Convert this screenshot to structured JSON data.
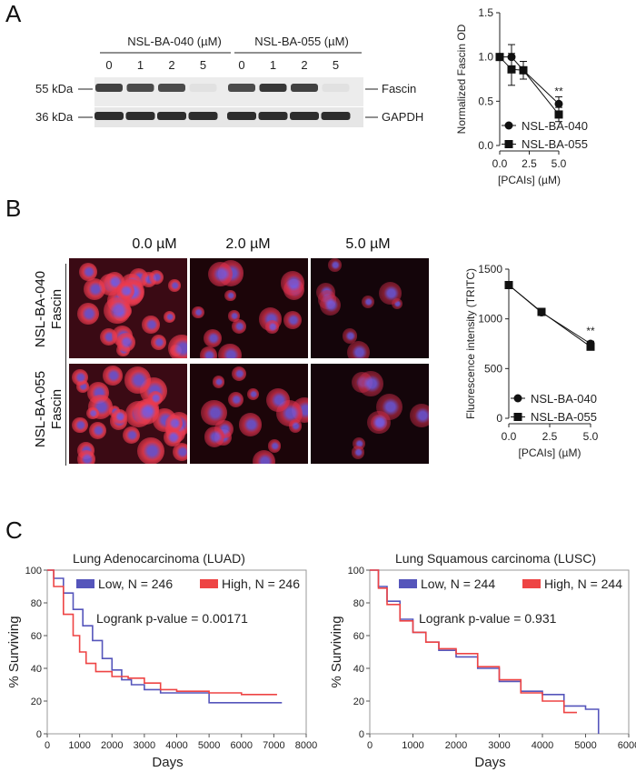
{
  "panels": {
    "a": "A",
    "b": "B",
    "c": "C"
  },
  "panel_a": {
    "groups": [
      "NSL-BA-040 (µM)",
      "NSL-BA-055 (µM)"
    ],
    "lanes": [
      "0",
      "1",
      "2",
      "5",
      "0",
      "1",
      "2",
      "5"
    ],
    "markers": [
      "55 kDa",
      "36 kDa"
    ],
    "bands": [
      "Fascin",
      "GAPDH"
    ],
    "fascin_intensity": [
      0.85,
      0.8,
      0.8,
      0.05,
      0.8,
      0.9,
      0.85,
      0.05
    ]
  },
  "panel_b": {
    "concentrations": [
      "0.0 µM",
      "2.0 µM",
      "5.0 µM"
    ],
    "rows": [
      {
        "line": "NSL-BA-040",
        "stain": "Fascin"
      },
      {
        "line": "NSL-BA-055",
        "stain": "Fascin"
      }
    ]
  },
  "chart_data": [
    {
      "id": "A-right",
      "type": "line",
      "title": "",
      "xlabel": "[PCAIs] (µM)",
      "ylabel": "Normalized Fascin OD",
      "xlim": [
        0,
        5
      ],
      "ylim": [
        0,
        1.5
      ],
      "xticks": [
        "0.0",
        "2.5",
        "5.0"
      ],
      "yticks": [
        "0.0",
        "0.5",
        "1.0",
        "1.5"
      ],
      "series": [
        {
          "name": "NSL-BA-040",
          "marker": "circle",
          "x": [
            0,
            1,
            2,
            5
          ],
          "y": [
            1.0,
            1.0,
            0.85,
            0.47
          ],
          "err": [
            0,
            0.14,
            0.1,
            0.08
          ]
        },
        {
          "name": "NSL-BA-055",
          "marker": "square",
          "x": [
            0,
            1,
            2,
            5
          ],
          "y": [
            1.0,
            0.86,
            0.85,
            0.35
          ],
          "err": [
            0,
            0.18,
            0.1,
            0.08
          ]
        }
      ],
      "annotation": "**"
    },
    {
      "id": "B-right",
      "type": "line",
      "title": "",
      "xlabel": "[PCAIs] (µM)",
      "ylabel": "Fluorescence intensity (TRITC)",
      "xlim": [
        0,
        5
      ],
      "ylim": [
        0,
        1500
      ],
      "xticks": [
        "0.0",
        "2.5",
        "5.0"
      ],
      "yticks": [
        "0",
        "500",
        "1000",
        "1500"
      ],
      "series": [
        {
          "name": "NSL-BA-040",
          "marker": "circle",
          "x": [
            0,
            2,
            5
          ],
          "y": [
            1340,
            1065,
            750
          ],
          "err": [
            25,
            25,
            25
          ]
        },
        {
          "name": "NSL-BA-055",
          "marker": "square",
          "x": [
            0,
            2,
            5
          ],
          "y": [
            1340,
            1070,
            720
          ],
          "err": [
            25,
            25,
            25
          ]
        }
      ],
      "annotation": "**"
    },
    {
      "id": "C-left",
      "type": "line",
      "title": "Lung Adenocarcinoma (LUAD)",
      "xlabel": "Days",
      "ylabel": "% Surviving",
      "xlim": [
        0,
        8000
      ],
      "ylim": [
        0,
        100
      ],
      "xticks": [
        "0",
        "1000",
        "2000",
        "3000",
        "4000",
        "5000",
        "6000",
        "7000",
        "8000"
      ],
      "yticks": [
        "0",
        "20",
        "40",
        "60",
        "80",
        "100"
      ],
      "legend": [
        "Low, N = 246",
        "High, N = 246"
      ],
      "annotation": "Logrank p-value = 0.00171",
      "series": [
        {
          "name": "Low",
          "color": "#5555bb",
          "x": [
            0,
            200,
            500,
            800,
            1100,
            1400,
            1700,
            2000,
            2300,
            2600,
            3000,
            3500,
            4000,
            4500,
            5000,
            6000,
            7250
          ],
          "y": [
            100,
            95,
            86,
            76,
            66,
            57,
            46,
            39,
            33,
            30,
            27,
            25,
            25,
            25,
            19,
            19,
            19
          ]
        },
        {
          "name": "High",
          "color": "#ee4444",
          "x": [
            0,
            200,
            500,
            800,
            1000,
            1200,
            1500,
            2000,
            2500,
            3000,
            3500,
            4000,
            5000,
            6000,
            7100
          ],
          "y": [
            100,
            90,
            73,
            60,
            50,
            43,
            38,
            35,
            34,
            31,
            27,
            26,
            25,
            24,
            24
          ]
        }
      ]
    },
    {
      "id": "C-right",
      "type": "line",
      "title": "Lung Squamous carcinoma (LUSC)",
      "xlabel": "Days",
      "ylabel": "% Surviving",
      "xlim": [
        0,
        6000
      ],
      "ylim": [
        0,
        100
      ],
      "xticks": [
        "0",
        "1000",
        "2000",
        "3000",
        "4000",
        "5000",
        "6000"
      ],
      "yticks": [
        "0",
        "20",
        "40",
        "60",
        "80",
        "100"
      ],
      "legend": [
        "Low, N = 244",
        "High, N = 244"
      ],
      "annotation": "Logrank p-value = 0.931",
      "series": [
        {
          "name": "Low",
          "color": "#5555bb",
          "x": [
            0,
            200,
            400,
            700,
            1000,
            1300,
            1600,
            2000,
            2500,
            3000,
            3500,
            4000,
            4500,
            5000,
            5300,
            5300
          ],
          "y": [
            100,
            90,
            81,
            70,
            62,
            56,
            51,
            47,
            40,
            32,
            26,
            24,
            17,
            15,
            15,
            0
          ]
        },
        {
          "name": "High",
          "color": "#ee4444",
          "x": [
            0,
            200,
            400,
            700,
            1000,
            1300,
            1600,
            2000,
            2500,
            3000,
            3500,
            4000,
            4500,
            4800
          ],
          "y": [
            100,
            89,
            79,
            69,
            62,
            56,
            52,
            49,
            41,
            33,
            25,
            20,
            13,
            13
          ]
        }
      ]
    }
  ]
}
